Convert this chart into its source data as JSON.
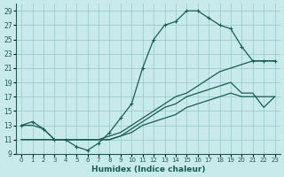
{
  "xlabel": "Humidex (Indice chaleur)",
  "bg_color": "#c8eaea",
  "grid_color": "#9ecece",
  "line_color": "#1a5c50",
  "xlim": [
    -0.5,
    23.5
  ],
  "ylim": [
    9,
    30
  ],
  "yticks": [
    9,
    11,
    13,
    15,
    17,
    19,
    21,
    23,
    25,
    27,
    29
  ],
  "xticks": [
    0,
    1,
    2,
    3,
    4,
    5,
    6,
    7,
    8,
    9,
    10,
    11,
    12,
    13,
    14,
    15,
    16,
    17,
    18,
    19,
    20,
    21,
    22,
    23
  ],
  "s1_x": [
    0,
    1,
    2,
    3,
    4,
    5,
    6,
    7,
    8,
    9,
    10,
    11,
    12,
    13,
    14,
    15,
    16,
    17,
    18,
    19,
    20,
    21,
    22,
    23
  ],
  "s1_y": [
    13,
    13.5,
    12.5,
    11,
    11,
    10,
    9.5,
    10.5,
    12,
    14,
    16,
    21,
    25,
    27,
    27.5,
    29,
    29,
    28,
    27,
    26.5,
    24,
    22,
    22,
    22
  ],
  "s2_x": [
    0,
    1,
    2,
    3,
    4,
    5,
    6,
    7,
    8,
    9,
    10,
    11,
    12,
    13,
    14,
    15,
    16,
    17,
    18,
    19,
    20,
    21,
    22,
    23
  ],
  "s2_y": [
    13,
    13,
    12.5,
    11,
    11,
    11,
    11,
    11,
    11.5,
    12,
    13,
    14,
    15,
    16,
    17,
    17.5,
    18.5,
    19.5,
    20.5,
    21,
    21.5,
    22,
    22,
    22
  ],
  "s3_x": [
    0,
    1,
    2,
    3,
    4,
    5,
    6,
    7,
    8,
    9,
    10,
    11,
    12,
    13,
    14,
    15,
    16,
    17,
    18,
    19,
    20,
    21,
    22,
    23
  ],
  "s3_y": [
    11,
    11,
    11,
    11,
    11,
    11,
    11,
    11,
    11,
    11.5,
    12.5,
    13.5,
    14.5,
    15.5,
    16,
    17,
    17.5,
    18,
    18.5,
    19,
    17.5,
    17.5,
    15.5,
    17
  ],
  "s4_x": [
    0,
    1,
    2,
    3,
    4,
    5,
    6,
    7,
    8,
    9,
    10,
    11,
    12,
    13,
    14,
    15,
    16,
    17,
    18,
    19,
    20,
    21,
    22,
    23
  ],
  "s4_y": [
    11,
    11,
    11,
    11,
    11,
    11,
    11,
    11,
    11,
    11.5,
    12,
    13,
    13.5,
    14,
    14.5,
    15.5,
    16,
    16.5,
    17,
    17.5,
    17,
    17,
    17,
    17
  ]
}
